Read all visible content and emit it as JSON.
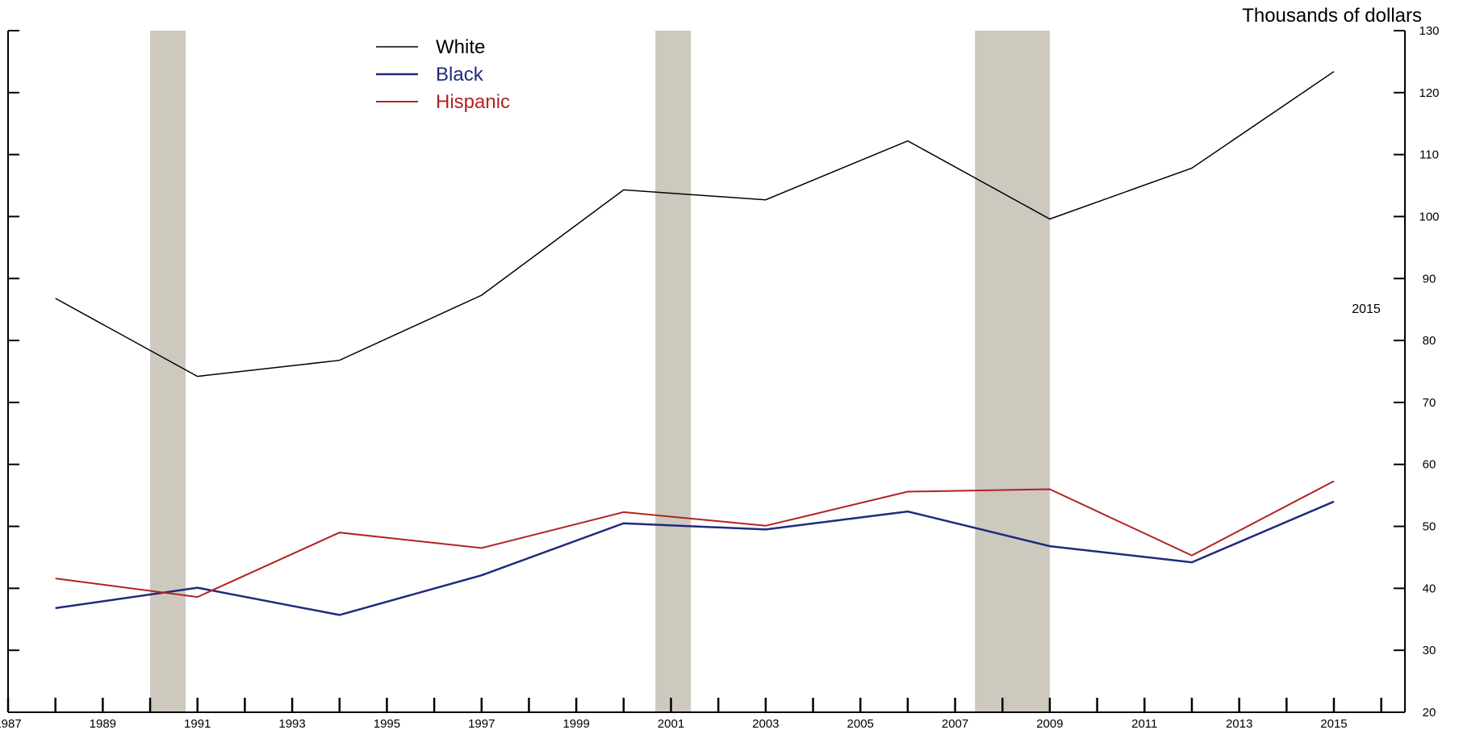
{
  "chart_data": {
    "type": "line",
    "y_unit_label": "Thousands of dollars",
    "x_range": [
      1987,
      2016.5
    ],
    "x_ticks": [
      1987,
      1988,
      1989,
      1990,
      1991,
      1992,
      1993,
      1994,
      1995,
      1996,
      1997,
      1998,
      1999,
      2000,
      2001,
      2002,
      2003,
      2004,
      2005,
      2006,
      2007,
      2008,
      2009,
      2010,
      2011,
      2012,
      2013,
      2014,
      2015,
      2016
    ],
    "x_tick_labels": [
      "1987",
      "1989",
      "1991",
      "1993",
      "1995",
      "1997",
      "1999",
      "2001",
      "2003",
      "2005",
      "2007",
      "2009",
      "2011",
      "2013",
      "2015"
    ],
    "ylim": [
      20,
      130
    ],
    "y_ticks": [
      20,
      30,
      40,
      50,
      60,
      70,
      80,
      90,
      100,
      110,
      120,
      130
    ],
    "y_axis_side": "right",
    "grid": false,
    "legend_position": "top-left",
    "recession_shading": [
      {
        "start": 1990.0,
        "end": 1990.75
      },
      {
        "start": 2000.67,
        "end": 2001.42
      },
      {
        "start": 2007.42,
        "end": 2009.0
      }
    ],
    "x": [
      1988,
      1991,
      1994,
      1997,
      2000,
      2003,
      2006,
      2009,
      2012,
      2015
    ],
    "series": [
      {
        "name": "White",
        "color": "#000000",
        "line_width": 1.5,
        "values": [
          86.8,
          74.2,
          76.8,
          87.3,
          104.3,
          102.7,
          112.2,
          99.6,
          107.8,
          123.4
        ]
      },
      {
        "name": "Black",
        "color": "#1f2a7d",
        "line_width": 2.5,
        "values": [
          36.8,
          40.1,
          35.7,
          42.1,
          50.5,
          49.5,
          52.4,
          46.8,
          44.2,
          54.0
        ]
      },
      {
        "name": "Hispanic",
        "color": "#b22222",
        "line_width": 2,
        "values": [
          41.6,
          38.6,
          49.0,
          46.5,
          52.3,
          50.1,
          55.6,
          56.0,
          45.3,
          57.3
        ]
      }
    ],
    "annotations": [
      {
        "text": "2015"
      }
    ]
  }
}
